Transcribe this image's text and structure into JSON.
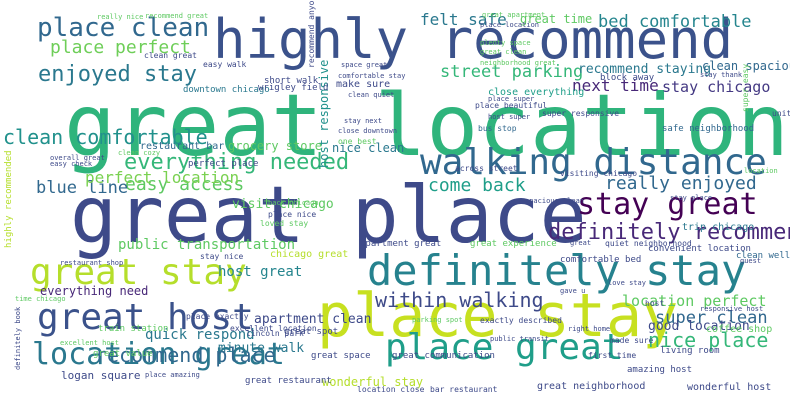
{
  "colormap": [
    "#440154",
    "#3b528b",
    "#21918c",
    "#1fa187",
    "#5ec962",
    "#b5de2b"
  ],
  "words": [
    {
      "text": "great location",
      "color": "#2fb47c"
    },
    {
      "text": "great place",
      "color": "#3e4a89"
    },
    {
      "text": "place stay",
      "color": "#c7e020"
    },
    {
      "text": "highly recommend",
      "color": "#3b528b"
    },
    {
      "text": "definitely stay",
      "color": "#26828e"
    },
    {
      "text": "walking distance",
      "color": "#31688e"
    },
    {
      "text": "great stay",
      "color": "#b5de2b"
    },
    {
      "text": "great host",
      "color": "#3b528b"
    },
    {
      "text": "place great",
      "color": "#1f9e89"
    },
    {
      "text": "location great",
      "color": "#2a788e"
    },
    {
      "text": "stay great",
      "color": "#440154"
    },
    {
      "text": "place clean",
      "color": "#31688e"
    },
    {
      "text": "definitely recommend",
      "color": "#482878"
    },
    {
      "text": "everything needed",
      "color": "#35b779"
    },
    {
      "text": "enjoyed stay",
      "color": "#2a788e"
    },
    {
      "text": "clean comfortable",
      "color": "#21918c"
    },
    {
      "text": "within walking",
      "color": "#3e4a89"
    },
    {
      "text": "recommend place",
      "color": "#31688e"
    },
    {
      "text": "felt safe",
      "color": "#2a788e"
    },
    {
      "text": "bed comfortable",
      "color": "#25858e"
    },
    {
      "text": "place perfect",
      "color": "#6ece58"
    },
    {
      "text": "street parking",
      "color": "#35b779"
    },
    {
      "text": "really enjoyed",
      "color": "#31688e"
    },
    {
      "text": "come back",
      "color": "#1f9e89"
    },
    {
      "text": "easy access",
      "color": "#5ec962"
    },
    {
      "text": "blue line",
      "color": "#31688e"
    },
    {
      "text": "perfect location",
      "color": "#7ad151"
    },
    {
      "text": "nice place",
      "color": "#35b779"
    },
    {
      "text": "super clean",
      "color": "#31688e"
    },
    {
      "text": "location perfect",
      "color": "#5ec962"
    },
    {
      "text": "next time",
      "color": "#482878"
    },
    {
      "text": "stay chicago",
      "color": "#443983"
    },
    {
      "text": "recommend staying",
      "color": "#2a788e"
    },
    {
      "text": "public transportation",
      "color": "#5ec962"
    },
    {
      "text": "host great",
      "color": "#25858e"
    },
    {
      "text": "everything need",
      "color": "#482878"
    },
    {
      "text": "minute walk",
      "color": "#2a788e"
    },
    {
      "text": "quick respond",
      "color": "#2a788e"
    },
    {
      "text": "great time",
      "color": "#5ec962"
    },
    {
      "text": "good location",
      "color": "#3e4a89"
    },
    {
      "text": "visit chicago",
      "color": "#5ec962"
    },
    {
      "text": "apartment clean",
      "color": "#3e4a89"
    },
    {
      "text": "host responsive",
      "color": "#21918c"
    },
    {
      "text": "clean spacious",
      "color": "#31688e"
    },
    {
      "text": "easy walk",
      "color": "#3e4a89"
    },
    {
      "text": "clean great",
      "color": "#3e4a89"
    },
    {
      "text": "space great",
      "color": "#3e4a89"
    },
    {
      "text": "downtown chicago",
      "color": "#2a788e"
    },
    {
      "text": "wrigley field",
      "color": "#3e4a89"
    },
    {
      "text": "grocery store",
      "color": "#5ec962"
    },
    {
      "text": "restaurant bar",
      "color": "#31688e"
    },
    {
      "text": "nice clean",
      "color": "#2a788e"
    },
    {
      "text": "close everything",
      "color": "#1f9e89"
    },
    {
      "text": "block away",
      "color": "#3e4a89"
    },
    {
      "text": "make sure",
      "color": "#3e4a89"
    },
    {
      "text": "bus stop",
      "color": "#31688e"
    },
    {
      "text": "place beautiful",
      "color": "#3e4a89"
    },
    {
      "text": "coffee shop",
      "color": "#5ec962"
    },
    {
      "text": "safe neighborhood",
      "color": "#31688e"
    },
    {
      "text": "trip chicago",
      "color": "#2a788e"
    },
    {
      "text": "clean well",
      "color": "#31688e"
    },
    {
      "text": "convenient location",
      "color": "#3e4a89"
    },
    {
      "text": "comfortable bed",
      "color": "#3e4a89"
    },
    {
      "text": "great experience",
      "color": "#5ec962"
    },
    {
      "text": "apartment great",
      "color": "#3e4a89"
    },
    {
      "text": "chicago great",
      "color": "#b5de2b"
    },
    {
      "text": "stay nice",
      "color": "#3e4a89"
    },
    {
      "text": "loved stay",
      "color": "#5ec962"
    },
    {
      "text": "perfect place",
      "color": "#3e4a89"
    },
    {
      "text": "place nice",
      "color": "#3e4a89"
    },
    {
      "text": "back chicago",
      "color": "#5ec962"
    },
    {
      "text": "train station",
      "color": "#5ec962"
    },
    {
      "text": "great value",
      "color": "#5ec962"
    },
    {
      "text": "great spot",
      "color": "#3e4a89"
    },
    {
      "text": "excellent location",
      "color": "#3e4a89"
    },
    {
      "text": "place exactly",
      "color": "#3e4a89"
    },
    {
      "text": "great space",
      "color": "#3e4a89"
    },
    {
      "text": "lincoln park",
      "color": "#3e4a89"
    },
    {
      "text": "wonderful stay",
      "color": "#b5de2b"
    },
    {
      "text": "great communication",
      "color": "#3e4a89"
    },
    {
      "text": "logan square",
      "color": "#3e4a89"
    },
    {
      "text": "great restaurant",
      "color": "#3e4a89"
    },
    {
      "text": "location close",
      "color": "#3e4a89"
    },
    {
      "text": "bar restaurant",
      "color": "#3e4a89"
    },
    {
      "text": "great neighborhood",
      "color": "#3e4a89"
    },
    {
      "text": "wonderful host",
      "color": "#3e4a89"
    },
    {
      "text": "amazing host",
      "color": "#3e4a89"
    },
    {
      "text": "first time",
      "color": "#3e4a89"
    },
    {
      "text": "living room",
      "color": "#3e4a89"
    },
    {
      "text": "recommend great",
      "color": "#5ec962"
    },
    {
      "text": "really nice",
      "color": "#5ec962"
    },
    {
      "text": "exactly described",
      "color": "#3e4a89"
    },
    {
      "text": "parking spot",
      "color": "#5ec962"
    },
    {
      "text": "public transit",
      "color": "#3e4a89"
    },
    {
      "text": "right home",
      "color": "#3e4a89"
    },
    {
      "text": "made sure",
      "color": "#3e4a89"
    },
    {
      "text": "across street",
      "color": "#3e4a89"
    },
    {
      "text": "great apartment",
      "color": "#5ec962"
    },
    {
      "text": "place location",
      "color": "#3e4a89"
    },
    {
      "text": "restaurant shop",
      "color": "#3e4a89"
    },
    {
      "text": "neighborhood great",
      "color": "#5ec962"
    },
    {
      "text": "comfortable stay",
      "color": "#3e4a89"
    },
    {
      "text": "clean quiet",
      "color": "#3e4a89"
    },
    {
      "text": "stay next",
      "color": "#3e4a89"
    },
    {
      "text": "great clean",
      "color": "#5ec962"
    },
    {
      "text": "stay thank",
      "color": "#3e4a89"
    },
    {
      "text": "close downtown",
      "color": "#3e4a89"
    },
    {
      "text": "short walk",
      "color": "#3e4a89"
    },
    {
      "text": "host super",
      "color": "#3e4a89"
    },
    {
      "text": "plenty space",
      "color": "#5ec962"
    },
    {
      "text": "recommend anyone",
      "color": "#3e4a89"
    },
    {
      "text": "one best",
      "color": "#5ec962"
    },
    {
      "text": "place super",
      "color": "#3e4a89"
    },
    {
      "text": "super responsive",
      "color": "#3e4a89"
    },
    {
      "text": "spacious clean",
      "color": "#3e4a89"
    },
    {
      "text": "visiting chicago",
      "color": "#3e4a89"
    },
    {
      "text": "unit",
      "color": "#3e4a89"
    },
    {
      "text": "host",
      "color": "#3e4a89"
    },
    {
      "text": "highly recommended",
      "color": "#b5de2b"
    },
    {
      "text": "clean cozy",
      "color": "#5ec962"
    },
    {
      "text": "overall great",
      "color": "#3e4a89"
    },
    {
      "text": "easy check",
      "color": "#3e4a89"
    },
    {
      "text": "location",
      "color": "#5ec962"
    },
    {
      "text": "quiet neighborhood",
      "color": "#3e4a89"
    },
    {
      "text": "great",
      "color": "#3e4a89"
    },
    {
      "text": "responsive host",
      "color": "#3e4a89"
    },
    {
      "text": "excellent host",
      "color": "#5ec962"
    },
    {
      "text": "place amazing",
      "color": "#3e4a89"
    },
    {
      "text": "definitely book",
      "color": "#3e4a89"
    },
    {
      "text": "time chicago",
      "color": "#5ec962"
    },
    {
      "text": "stay place",
      "color": "#3e4a89"
    },
    {
      "text": "guest",
      "color": "#3e4a89"
    },
    {
      "text": "gave u",
      "color": "#3e4a89"
    },
    {
      "text": "love stay",
      "color": "#3e4a89"
    },
    {
      "text": "super easy",
      "color": "#5ec962"
    }
  ]
}
